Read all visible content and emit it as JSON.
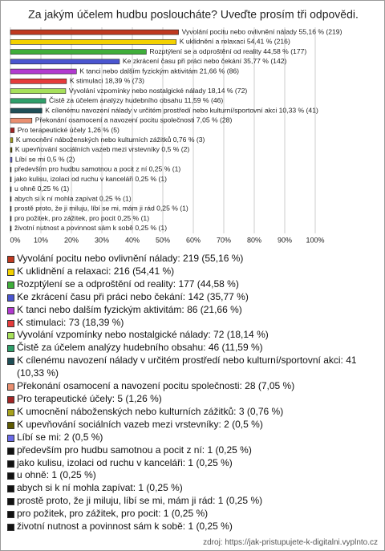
{
  "chart_data": {
    "type": "bar",
    "orientation": "horizontal",
    "title": "Za jakým účelem hudbu posloucháte? Uveďte prosím tři odpovědi.",
    "values": [
      55.16,
      54.41,
      44.58,
      35.77,
      21.66,
      18.39,
      18.14,
      11.59,
      10.33,
      7.05,
      1.26,
      0.76,
      0.5,
      0.5,
      0.25,
      0.25,
      0.25,
      0.25,
      0.25,
      0.25,
      0.25
    ],
    "value_labels": [
      "Vyvolání pocitu nebo ovlivnění nálady 55,16 % (219)",
      "K uklidnění a relaxaci 54,41 % (216)",
      "Rozptýlení se a odproštění od reality 44,58 % (177)",
      "Ke zkrácení času při práci nebo čekání 35,77 % (142)",
      "K tanci nebo dalším fyzickým aktivitám 21,66 % (86)",
      "K stimulaci 18,39 % (73)",
      "Vyvolání vzpomínky nebo nostalgické nálady 18,14 % (72)",
      "Čistě za účelem analýzy hudebního obsahu 11,59 % (46)",
      "K cílenému navození nálady v určitém prostředí nebo kulturní/sportovní akci 10,33 % (41)",
      "Překonání osamocení a navození pocitu společnosti 7,05 % (28)",
      "Pro terapeutické účely 1,26 % (5)",
      "K umocnění náboženských nebo kulturních zážitků 0,76 % (3)",
      "K upevňování sociálních vazeb mezi vrstevníky 0,5 % (2)",
      "Líbí se mi 0,5 % (2)",
      "především pro hudbu samotnou a pocit z ní 0,25 % (1)",
      "jako kulisu, izolaci od ruchu v kanceláři 0,25 % (1)",
      "u ohně 0,25 % (1)",
      "abych si k ní mohla zapívat 0,25 % (1)",
      "prostě proto, že ji miluju, líbí se mi, mám ji rád 0,25 % (1)",
      "pro požitek, pro zážitek, pro pocit 0,25 % (1)",
      "životní nutnost a povinnost sám k sobě 0,25 % (1)"
    ],
    "legend_labels": [
      "Vyvolání pocitu nebo ovlivnění nálady: 219 (55,16 %)",
      "K uklidnění a relaxaci: 216 (54,41 %)",
      "Rozptýlení se a odproštění od reality: 177 (44,58 %)",
      "Ke zkrácení času při práci nebo čekání: 142 (35,77 %)",
      "K tanci nebo dalším fyzickým aktivitám: 86 (21,66 %)",
      "K stimulaci: 73 (18,39 %)",
      "Vyvolání vzpomínky nebo nostalgické nálady: 72 (18,14 %)",
      "Čistě za účelem analýzy hudebního obsahu: 46 (11,59 %)",
      "K cílenému navození nálady v určitém prostředí nebo kulturní/sportovní akci: 41 (10,33 %)",
      "Překonání osamocení a navození pocitu společnosti: 28 (7,05 %)",
      "Pro terapeutické účely: 5 (1,26 %)",
      "K umocnění náboženských nebo kulturních zážitků: 3 (0,76 %)",
      "K upevňování sociálních vazeb mezi vrstevníky: 2 (0,5 %)",
      "Líbí se mi: 2 (0,5 %)",
      "především pro hudbu samotnou a pocit z ní: 1 (0,25 %)",
      "jako kulisu, izolaci od ruchu v kanceláři: 1 (0,25 %)",
      "u ohně: 1 (0,25 %)",
      "abych si k ní mohla zapívat: 1 (0,25 %)",
      "prostě proto, že ji miluju, líbí se mi, mám ji rád: 1 (0,25 %)",
      "pro požitek, pro zážitek, pro pocit: 1 (0,25 %)",
      "životní nutnost a povinnost sám k sobě: 1 (0,25 %)"
    ],
    "colors": [
      "#c0391f",
      "#f3d100",
      "#3fae3a",
      "#4a55d0",
      "#b23ad0",
      "#e53b3b",
      "#a6e05a",
      "#2f9f6a",
      "#1f4f57",
      "#e98f70",
      "#a32525",
      "#a8a21c",
      "#5e5a00",
      "#6a6ae8",
      "#111111",
      "#111111",
      "#111111",
      "#111111",
      "#111111",
      "#111111",
      "#111111"
    ],
    "xlim": [
      0,
      100
    ],
    "xticks": [
      {
        "value": 0,
        "label": "0%"
      },
      {
        "value": 10,
        "label": "10%"
      },
      {
        "value": 20,
        "label": "20%"
      },
      {
        "value": 30,
        "label": "30%"
      },
      {
        "value": 40,
        "label": "40%"
      },
      {
        "value": 50,
        "label": "50%"
      },
      {
        "value": 60,
        "label": "60%"
      },
      {
        "value": 70,
        "label": "70%"
      },
      {
        "value": 80,
        "label": "80%"
      },
      {
        "value": 90,
        "label": "90%"
      },
      {
        "value": 100,
        "label": "100%"
      }
    ],
    "grid": true,
    "source": "zdroj: https://jak-pristupujete-k-digitalni.vyplnto.cz"
  }
}
